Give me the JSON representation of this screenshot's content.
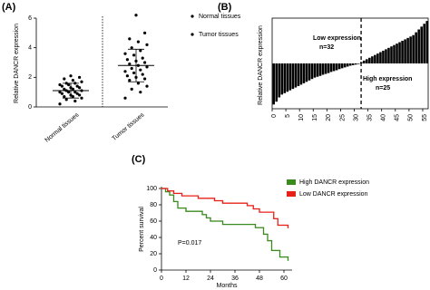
{
  "chart_data": [
    {
      "type": "scatter",
      "panel": "(A)",
      "ylabel": "Relative DANCR expression",
      "categories": [
        "Normal tissues",
        "Tumor tissues"
      ],
      "series": [
        {
          "name": "Normal tissues",
          "color": "#000000",
          "mean": 1.1,
          "sd": 0.5,
          "values": [
            0.2,
            0.4,
            0.5,
            0.6,
            0.7,
            0.7,
            0.8,
            0.8,
            0.9,
            0.9,
            1.0,
            1.0,
            1.0,
            1.1,
            1.1,
            1.2,
            1.2,
            1.3,
            1.3,
            1.4,
            1.4,
            1.5,
            1.5,
            1.6,
            1.6,
            1.7,
            1.8,
            1.9,
            2.0,
            2.1
          ]
        },
        {
          "name": "Tumor tissues",
          "color": "#000000",
          "mean": 2.8,
          "sd": 1.1,
          "values": [
            0.6,
            1.0,
            1.2,
            1.4,
            1.6,
            1.8,
            1.9,
            2.0,
            2.1,
            2.2,
            2.3,
            2.4,
            2.5,
            2.6,
            2.7,
            2.8,
            2.9,
            3.0,
            3.1,
            3.2,
            3.3,
            3.5,
            3.6,
            3.8,
            4.0,
            4.2,
            4.4,
            4.6,
            5.0,
            6.2
          ]
        }
      ],
      "ylim": [
        0,
        6
      ],
      "yticks": [
        0,
        2,
        4,
        6
      ]
    },
    {
      "type": "bar",
      "panel": "(B)",
      "ylabel": "Relative DANCR expression",
      "color": "#000000",
      "x": [
        1,
        2,
        3,
        4,
        5,
        6,
        7,
        8,
        9,
        10,
        11,
        12,
        13,
        14,
        15,
        16,
        17,
        18,
        19,
        20,
        21,
        22,
        23,
        24,
        25,
        26,
        27,
        28,
        29,
        30,
        31,
        32,
        33,
        34,
        35,
        36,
        37,
        38,
        39,
        40,
        41,
        42,
        43,
        44,
        45,
        46,
        47,
        48,
        49,
        50,
        51,
        52,
        53,
        54,
        55,
        56,
        57
      ],
      "values": [
        -1.45,
        -1.35,
        -1.2,
        -1.1,
        -1.05,
        -1.0,
        -0.95,
        -0.9,
        -0.85,
        -0.8,
        -0.75,
        -0.7,
        -0.65,
        -0.6,
        -0.55,
        -0.5,
        -0.47,
        -0.44,
        -0.4,
        -0.37,
        -0.34,
        -0.3,
        -0.27,
        -0.24,
        -0.2,
        -0.17,
        -0.14,
        -0.11,
        -0.08,
        -0.06,
        -0.04,
        -0.02,
        0.05,
        0.1,
        0.15,
        0.2,
        0.25,
        0.3,
        0.35,
        0.4,
        0.45,
        0.5,
        0.55,
        0.6,
        0.65,
        0.7,
        0.75,
        0.8,
        0.85,
        0.9,
        0.95,
        1.0,
        1.1,
        1.2,
        1.3,
        1.4,
        1.5
      ],
      "xlim": [
        0,
        57
      ],
      "xticks": [
        0,
        5,
        10,
        15,
        20,
        25,
        30,
        35,
        40,
        45,
        50,
        55
      ],
      "ylim": [
        -1.6,
        1.6
      ],
      "divider": 32.5,
      "annotations": [
        "Low expression",
        "n=32",
        "High expression",
        "n=25"
      ]
    },
    {
      "type": "line",
      "panel": "(C)",
      "xlabel": "Months",
      "ylabel": "Percent survival",
      "annotation": "P=0.017",
      "series": [
        {
          "name": "High DANCR expression",
          "color": "#3a8a1e",
          "x": [
            0,
            2,
            4,
            6,
            8,
            12,
            20,
            22,
            24,
            30,
            46,
            50,
            52,
            54,
            58,
            62
          ],
          "values": [
            100,
            96,
            92,
            84,
            76,
            72,
            68,
            64,
            60,
            56,
            52,
            44,
            36,
            24,
            16,
            12
          ]
        },
        {
          "name": "Low DANCR expression",
          "color": "#e8201a",
          "x": [
            0,
            3,
            6,
            10,
            18,
            26,
            30,
            42,
            45,
            48,
            55,
            57,
            62
          ],
          "values": [
            100,
            97,
            94,
            91,
            88,
            85,
            82,
            79,
            75,
            71,
            63,
            55,
            52
          ]
        }
      ],
      "xlim": [
        0,
        64
      ],
      "xticks": [
        0,
        12,
        24,
        36,
        48,
        60
      ],
      "ylim": [
        0,
        100
      ],
      "yticks": [
        0,
        20,
        40,
        60,
        80,
        100
      ]
    }
  ]
}
